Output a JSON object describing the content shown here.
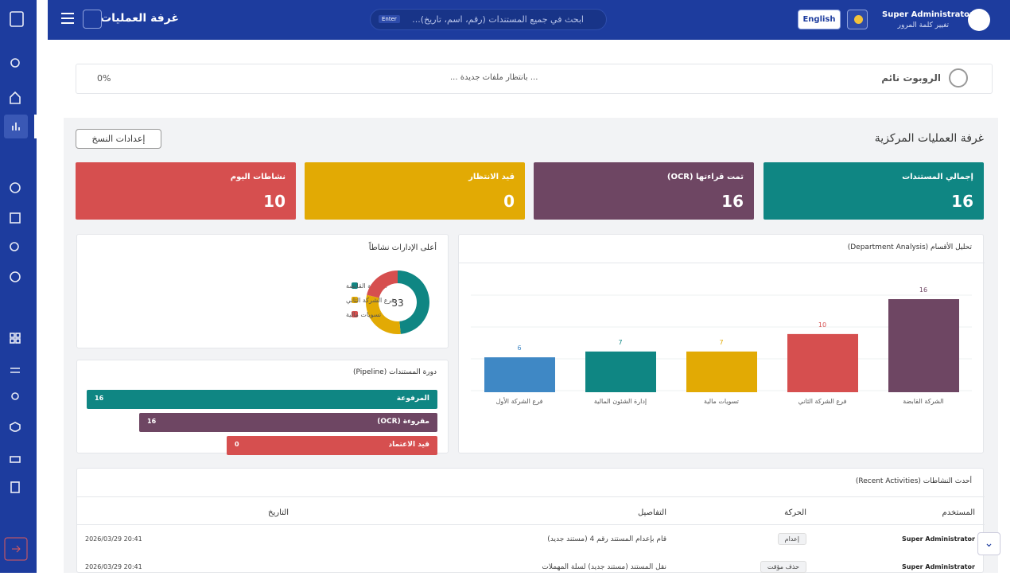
{
  "header": {
    "title": "غرفة العمليات",
    "search_placeholder": "ابحث في جميع المستندات (رقم، اسم، تاريخ)...",
    "search_hint": "Enter",
    "language": "English",
    "user_name": "Super Administrator",
    "change_password": "تغيير كلمة المرور"
  },
  "robot": {
    "status": "الروبوت نائم",
    "message": "... بانتظار ملفات جديدة ...",
    "progress": "0%"
  },
  "section": {
    "title": "غرفة العمليات المركزية",
    "settings_button": "إعدادات النسخ"
  },
  "stats": [
    {
      "label": "إجمالي المستندات",
      "value": 16,
      "color": "#0f8683"
    },
    {
      "label": "تمت قراءتها (OCR)",
      "value": 16,
      "color": "#6e4663"
    },
    {
      "label": "قيد الانتظار",
      "value": 0,
      "color": "#e2aa04"
    },
    {
      "label": "نشاطات اليوم",
      "value": 10,
      "color": "#d64f4f"
    }
  ],
  "department_chart": {
    "type": "bar",
    "title": "تحليل الأقسام (Department Analysis)",
    "categories": [
      "الشركة القابضة",
      "فرع الشركة الثاني",
      "تسويات مالية",
      "إدارة الشئون المالية",
      "فرع الشركة الأول"
    ],
    "values": [
      16,
      10,
      7,
      7,
      6
    ],
    "colors": [
      "#6e4663",
      "#d64f4f",
      "#e2aa04",
      "#0f8683",
      "#3f88c5"
    ]
  },
  "top_departments": {
    "type": "donut",
    "title": "أعلى الإدارات نشاطاً",
    "total": 33,
    "categories": [
      "الشركة القابضة",
      "فرع الشركة الثاني",
      "تسويات مالية"
    ],
    "values": [
      16,
      10,
      7
    ],
    "colors": [
      "#0f8683",
      "#e2aa04",
      "#d64f4f"
    ]
  },
  "pipeline": {
    "title": "دورة المستندات (Pipeline)",
    "stages": [
      {
        "label": "المرفوعة",
        "value": 16,
        "color": "#0f8683"
      },
      {
        "label": "مقروءة (OCR)",
        "value": 16,
        "color": "#6e4663"
      },
      {
        "label": "قيد الاعتماد",
        "value": 0,
        "color": "#d64f4f"
      }
    ]
  },
  "activities": {
    "title": "أحدث النشاطات (Recent Activities)",
    "columns": [
      "المستخدم",
      "الحركة",
      "التفاصيل",
      "التاريخ"
    ],
    "rows": [
      [
        "Super Administrator",
        "إعدام",
        "قام بإعدام المستند رقم 4 (مستند جديد)",
        "2026/03/29 20:41"
      ],
      [
        "Super Administrator",
        "حذف مؤقت",
        "نقل المستند (مستند جديد) لسلة المهملات",
        "2026/03/29 20:41"
      ]
    ]
  }
}
